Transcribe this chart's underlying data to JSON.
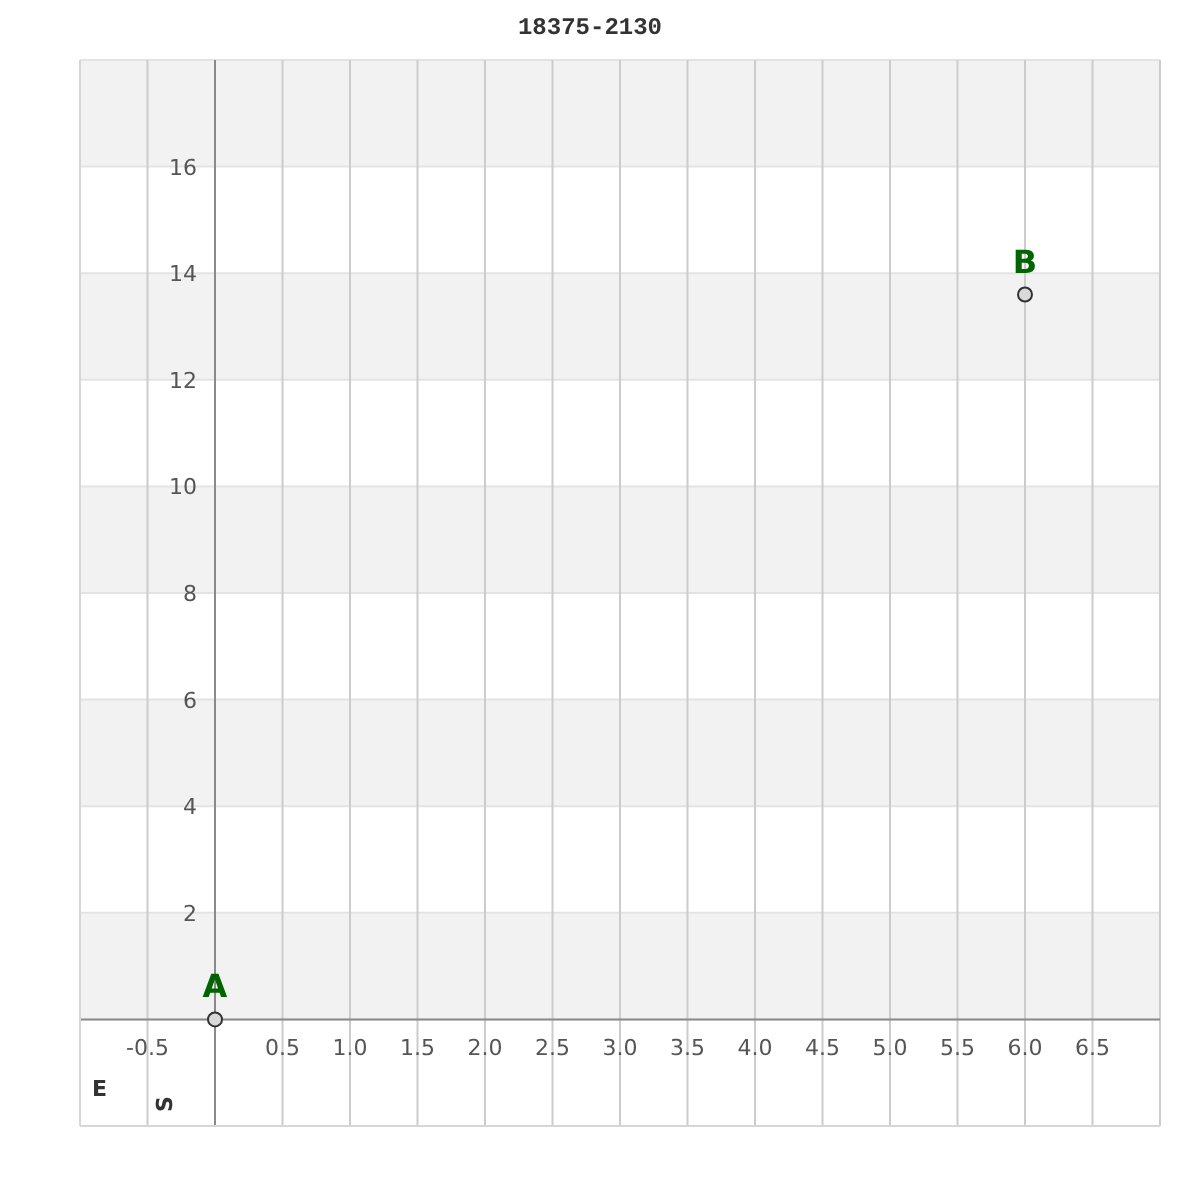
{
  "chart_data": {
    "type": "scatter",
    "title": "18375-2130",
    "xlabel": "E",
    "ylabel": "S",
    "x": [
      0,
      6
    ],
    "values": [
      0,
      13.6
    ],
    "color": "#333333",
    "marker": "circle",
    "xlim": [
      -1,
      7
    ],
    "ylim": [
      -2,
      18
    ],
    "xticks": [
      -0.5,
      0.5,
      {
        "value": 1,
        "label": "1.0"
      },
      1.5,
      {
        "value": 2,
        "label": "2.0"
      },
      2.5,
      {
        "value": 3,
        "label": "3.0"
      },
      3.5,
      {
        "value": 4,
        "label": "4.0"
      },
      4.5,
      {
        "value": 5,
        "label": "5.0"
      },
      5.5,
      {
        "value": 6,
        "label": "6.0"
      },
      6.5
    ],
    "yticks": [
      2,
      4,
      6,
      8,
      10,
      12,
      14,
      16
    ],
    "grid": true,
    "bands": [
      {
        "axis": "y",
        "from": 0,
        "to": 2,
        "color": "#f2f2f2"
      },
      {
        "axis": "y",
        "from": 4,
        "to": 6,
        "color": "#f2f2f2"
      },
      {
        "axis": "y",
        "from": 8,
        "to": 10,
        "color": "#f2f2f2"
      },
      {
        "axis": "y",
        "from": 12,
        "to": 14,
        "color": "#f2f2f2"
      },
      {
        "axis": "y",
        "from": 16,
        "to": 18,
        "color": "#f2f2f2"
      }
    ],
    "annotations": [
      {
        "text": "A",
        "x": 0,
        "y": 0
      },
      {
        "text": "B",
        "x": 6,
        "y": 13.6
      }
    ]
  }
}
